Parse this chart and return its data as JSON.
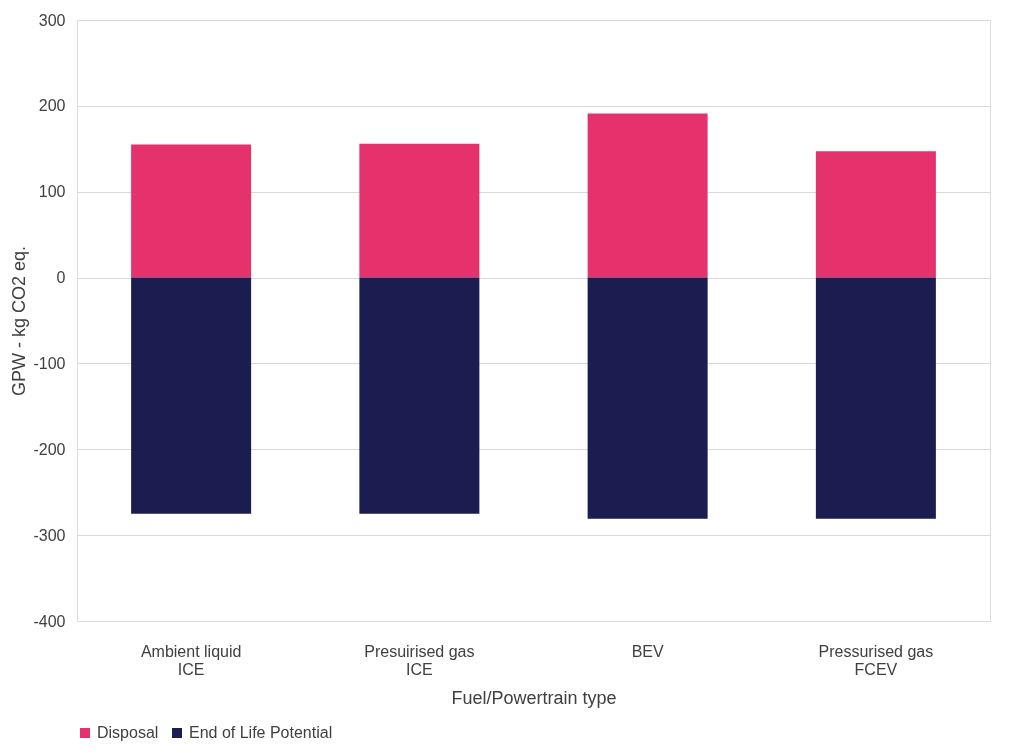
{
  "chart_data": {
    "type": "bar",
    "stacked": true,
    "xlabel": "Fuel/Powertrain type",
    "ylabel": "GPW - kg CO2 eq.",
    "categories": [
      "Ambient liquid\nICE",
      "Presuirised gas\nICE",
      "BEV",
      "Pressurised gas\nFCEV"
    ],
    "series": [
      {
        "name": "Disposal",
        "color": "#e5316c",
        "values": [
          155,
          156,
          191,
          147
        ]
      },
      {
        "name": "End of Life Potential",
        "color": "#1b1c4f",
        "values": [
          -275,
          -275,
          -281,
          -281
        ]
      }
    ],
    "ylim": [
      -400,
      300
    ],
    "yticks": [
      -400,
      -300,
      -200,
      -100,
      0,
      100,
      200,
      300
    ],
    "grid": "y",
    "legend": "bottom"
  }
}
